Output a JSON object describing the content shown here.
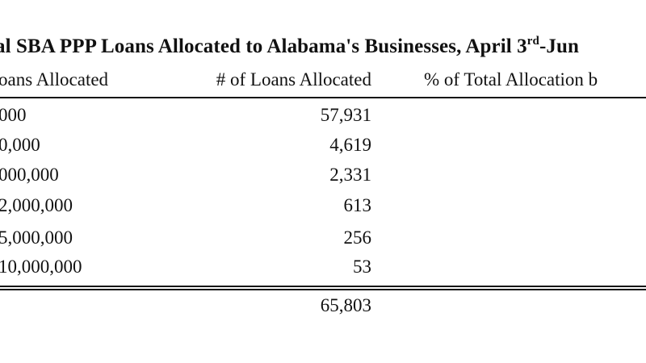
{
  "table": {
    "title_main": "al SBA PPP Loans Allocated to Alabama's Businesses, April 3",
    "title_sup": "rd",
    "title_end": "-Jun",
    "headers": {
      "size": "oans Allocated",
      "count": "# of Loans Allocated",
      "pct": "% of Total Allocation b"
    },
    "rows": [
      {
        "size": "000",
        "count": "57,931"
      },
      {
        "size": "0,000",
        "count": "4,619"
      },
      {
        "size": "000,000",
        "count": "2,331"
      },
      {
        "size": "2,000,000",
        "count": "613"
      },
      {
        "size": "5,000,000",
        "count": "256"
      },
      {
        "size": "10,000,000",
        "count": "53"
      }
    ],
    "total_count": "65,803"
  }
}
